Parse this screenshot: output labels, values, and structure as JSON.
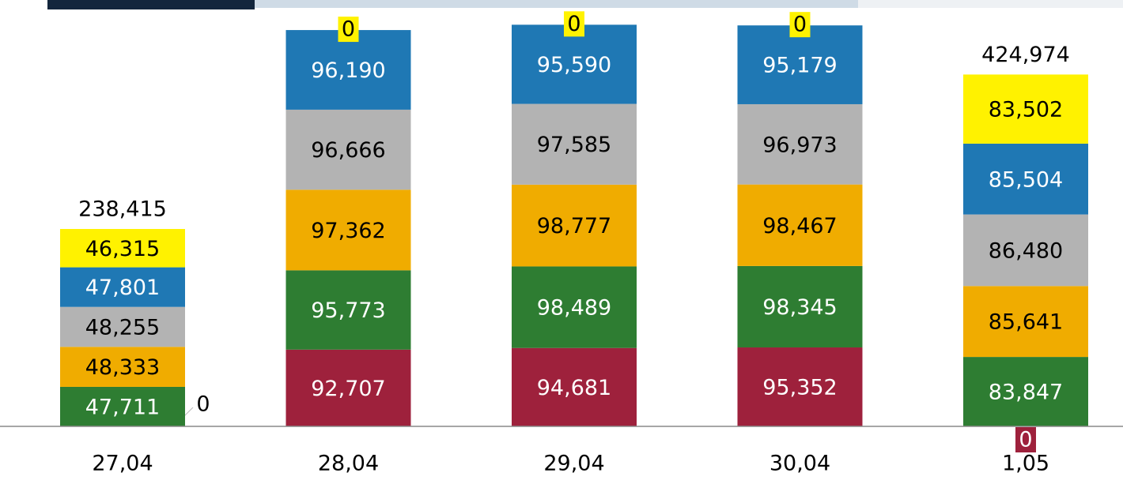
{
  "chart_data": {
    "type": "stacked_bar",
    "categories": [
      "27,04",
      "28,04",
      "29,04",
      "30,04",
      "1,05"
    ],
    "series": [
      {
        "color": "#9e213c",
        "values": [
          0,
          92707,
          94681,
          95352,
          0
        ],
        "value_labels": [
          "0",
          "92,707",
          "94,681",
          "95,352",
          "0"
        ]
      },
      {
        "color": "#2e7d32",
        "values": [
          47711,
          95773,
          98489,
          98345,
          83847
        ],
        "value_labels": [
          "47,711",
          "95,773",
          "98,489",
          "98,345",
          "83,847"
        ]
      },
      {
        "color": "#f0ac00",
        "values": [
          48333,
          97362,
          98777,
          98467,
          85641
        ],
        "value_labels": [
          "48,333",
          "97,362",
          "98,777",
          "98,467",
          "85,641"
        ]
      },
      {
        "color": "#b3b3b3",
        "values": [
          48255,
          96666,
          97585,
          96973,
          86480
        ],
        "value_labels": [
          "48,255",
          "96,666",
          "97,585",
          "96,973",
          "86,480"
        ]
      },
      {
        "color": "#1f78b4",
        "values": [
          47801,
          96190,
          95590,
          95179,
          85504
        ],
        "value_labels": [
          "47,801",
          "96,190",
          "95,590",
          "95,179",
          "85,504"
        ]
      },
      {
        "color": "#fff200",
        "values": [
          46315,
          0,
          0,
          0,
          83502
        ],
        "value_labels": [
          "46,315",
          "0",
          "0",
          "0",
          "83,502"
        ]
      }
    ],
    "totals": {
      "values": [
        238415,
        null,
        null,
        null,
        424974
      ],
      "value_labels": [
        "238,415",
        null,
        null,
        null,
        "424,974"
      ]
    },
    "ylim": [
      0,
      515000
    ]
  }
}
